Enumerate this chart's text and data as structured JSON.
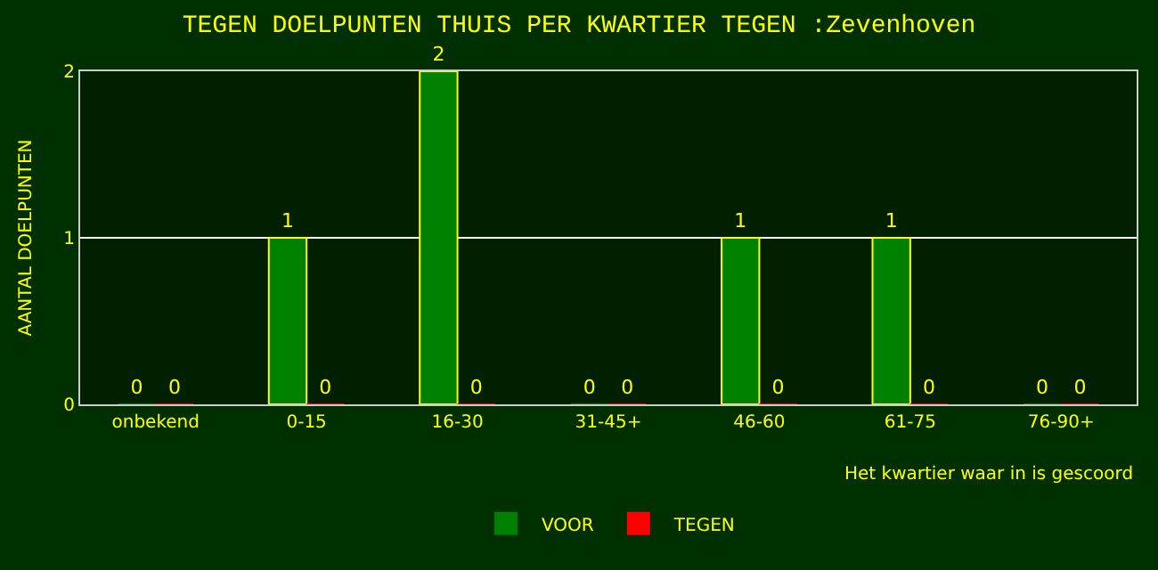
{
  "chart_data": {
    "type": "bar",
    "title": "TEGEN DOELPUNTEN THUIS PER KWARTIER TEGEN :Zevenhoven",
    "ylabel": "AANTAL DOELPUNTEN",
    "xlabel": "Het kwartier waar in is gescoord",
    "categories": [
      "onbekend",
      "0-15",
      "16-30",
      "31-45+",
      "46-60",
      "61-75",
      "76-90+"
    ],
    "series": [
      {
        "name": "VOOR",
        "color": "#008000",
        "values": [
          0,
          1,
          2,
          0,
          1,
          1,
          0
        ]
      },
      {
        "name": "TEGEN",
        "color": "#ff0000",
        "values": [
          0,
          0,
          0,
          0,
          0,
          0,
          0
        ]
      }
    ],
    "ylim": [
      0,
      2
    ],
    "yticks": [
      0,
      1,
      2
    ],
    "grid": "y",
    "legend": "bottom",
    "data_labels": true
  }
}
